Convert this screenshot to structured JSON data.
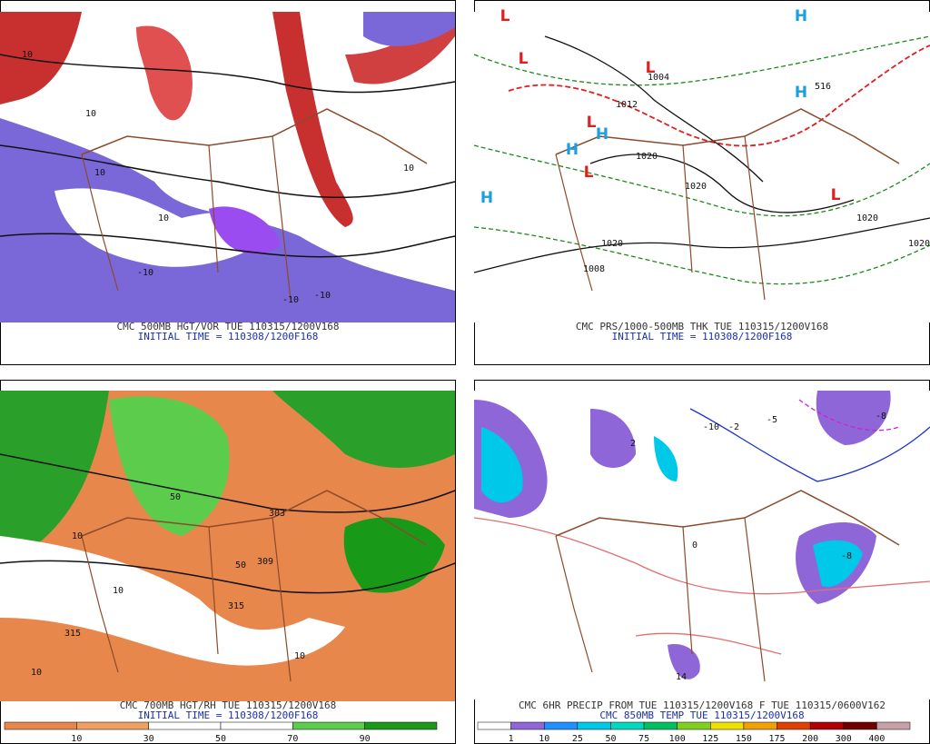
{
  "panels": [
    {
      "caption": [
        "CMC 500MB HGT/VOR TUE 110315/1200V168",
        "INITIAL TIME = 110308/1200F168"
      ],
      "labels": [
        "10",
        "10",
        "-10",
        "10",
        "10",
        "-10",
        "10",
        "-10"
      ]
    },
    {
      "caption": [
        "CMC PRS/1000-500MB THK TUE 110315/1200V168",
        "INITIAL TIME = 110308/1200F168"
      ],
      "labels": [
        "L",
        "L",
        "L",
        "L",
        "L",
        "L",
        "H",
        "H",
        "H",
        "H",
        "H",
        "1004",
        "1012",
        "1020",
        "1020",
        "1020",
        "1020",
        "1020",
        "1008",
        "516"
      ]
    },
    {
      "caption": [
        "CMC 700MB HGT/RH TUE 110315/1200V168",
        "INITIAL TIME = 110308/1200F168"
      ],
      "labels": [
        "10",
        "10",
        "50",
        "50",
        "315",
        "315",
        "10",
        "303",
        "10",
        "309"
      ],
      "colorbar": {
        "labels": [
          "10",
          "30",
          "50",
          "70",
          "90"
        ],
        "colors": [
          "#e8874b",
          "#f0a060",
          "#ffffff",
          "#ffffff",
          "#5ccc4c",
          "#189a18"
        ]
      }
    },
    {
      "caption": [
        "CMC 6HR PRECIP FROM TUE 110315/1200V168 F TUE 110315/0600V162",
        "CMC 850MB TEMP TUE 110315/1200V168"
      ],
      "labels": [
        "-10",
        "-2",
        "2",
        "-5",
        "14",
        "-8",
        "-8",
        "0"
      ],
      "colorbar": {
        "labels": [
          "1",
          "10",
          "25",
          "50",
          "75",
          "100",
          "125",
          "150",
          "175",
          "200",
          "300",
          "400"
        ],
        "colors": [
          "#ffffff",
          "#8f66d8",
          "#1e90ff",
          "#00c8e8",
          "#00d8c0",
          "#00c060",
          "#80d020",
          "#f0e000",
          "#f0a000",
          "#e04000",
          "#b00000",
          "#700000",
          "#c8a0a8"
        ]
      }
    }
  ]
}
